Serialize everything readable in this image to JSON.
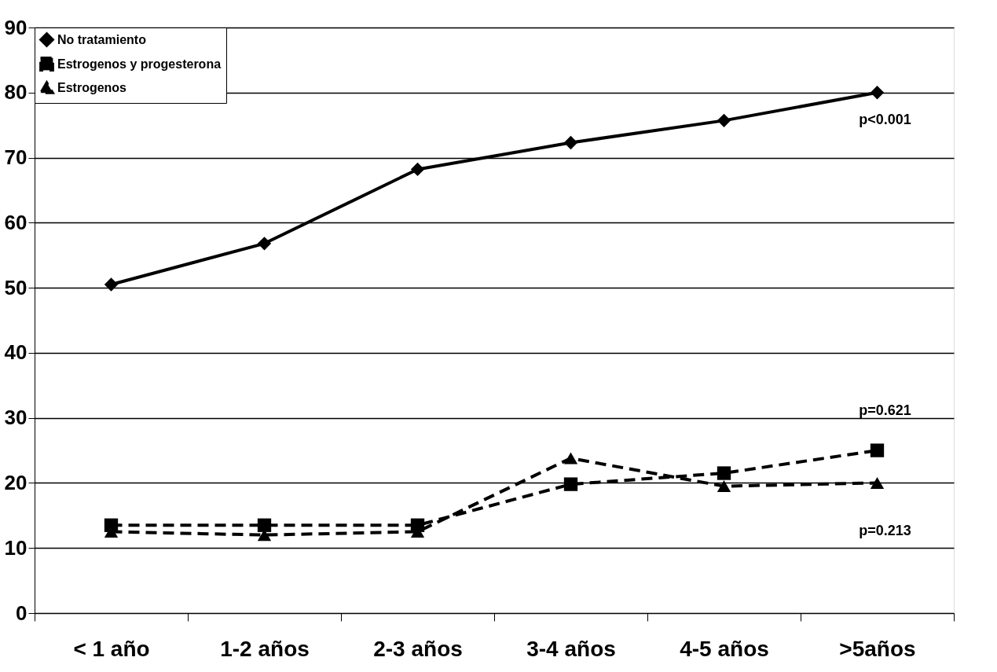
{
  "chart_data": {
    "type": "line",
    "categories": [
      "< 1 año",
      "1-2 años",
      "2-3 años",
      "3-4 años",
      "4-5 años",
      ">5años"
    ],
    "series": [
      {
        "name": "No tratamiento",
        "color": "#000000",
        "marker": "diamond",
        "line_style": "solid",
        "values": [
          50.5,
          56.8,
          68.2,
          72.3,
          75.7,
          80
        ]
      },
      {
        "name": "Estrogenos y progesterona",
        "color": "#000000",
        "marker": "square",
        "line_style": "dashed",
        "values": [
          13.5,
          13.5,
          13.5,
          19.8,
          21.5,
          25
        ]
      },
      {
        "name": "Estrogenos",
        "color": "#000000",
        "marker": "triangle",
        "line_style": "dashed",
        "values": [
          12.5,
          12,
          12.5,
          23.8,
          19.5,
          20
        ]
      }
    ],
    "ylim": [
      0,
      90
    ],
    "yticks": [
      0,
      10,
      20,
      30,
      40,
      50,
      60,
      70,
      80,
      90
    ],
    "grid": "y",
    "legend": "top left",
    "annotations": [
      "p<0.001",
      "p=0.621",
      "p=0.213"
    ]
  }
}
